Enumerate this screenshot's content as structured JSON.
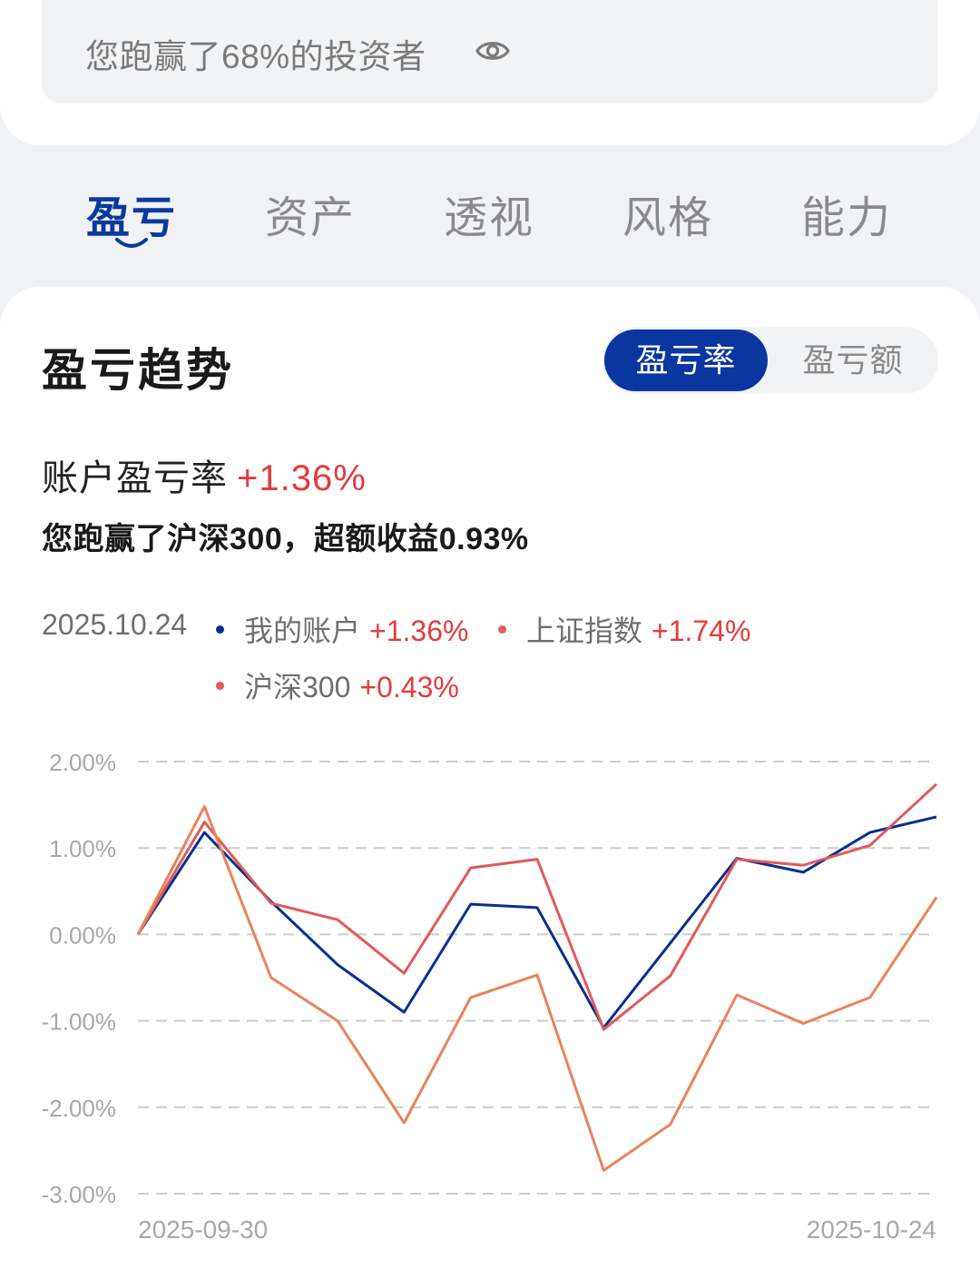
{
  "header": {
    "rank_text": "您跑赢了68%的投资者",
    "eye_icon": "eye-icon"
  },
  "tabs": [
    {
      "label": "盈亏",
      "active": true
    },
    {
      "label": "资产",
      "active": false
    },
    {
      "label": "透视",
      "active": false
    },
    {
      "label": "风格",
      "active": false
    },
    {
      "label": "能力",
      "active": false
    }
  ],
  "section": {
    "title": "盈亏趋势",
    "toggle": {
      "active": "盈亏率",
      "inactive": "盈亏额"
    },
    "rate_label": "账户盈亏率",
    "rate_value": "+1.36%",
    "sub_text": "您跑赢了沪深300，超额收益0.93%"
  },
  "legend": {
    "date": "2025.10.24",
    "items": [
      {
        "name": "我的账户",
        "value": "+1.36%",
        "color": "#0a2f8f"
      },
      {
        "name": "上证指数",
        "value": "+1.74%",
        "color": "#e05a5a"
      },
      {
        "name": "沪深300",
        "value": "+0.43%",
        "color": "#e8835a"
      }
    ]
  },
  "colors": {
    "accent": "#0a36a0",
    "positive": "#e63a3a",
    "grid": "#cccccc"
  },
  "chart_data": {
    "type": "line",
    "x_labels": [
      "2025-09-30",
      "2025-10-24"
    ],
    "ylim": [
      -3.0,
      2.0
    ],
    "y_ticks": [
      {
        "value": 2.0,
        "label": "2.00%"
      },
      {
        "value": 1.0,
        "label": "1.00%"
      },
      {
        "value": 0.0,
        "label": "0.00%"
      },
      {
        "value": -1.0,
        "label": "-1.00%"
      },
      {
        "value": -2.0,
        "label": "-2.00%"
      },
      {
        "value": -3.0,
        "label": "-3.00%"
      }
    ],
    "grid": true,
    "series": [
      {
        "name": "我的账户",
        "color": "#0a2f8f",
        "values": [
          0.0,
          1.18,
          0.38,
          -0.35,
          -0.9,
          0.35,
          0.31,
          -1.08,
          -0.1,
          0.88,
          0.72,
          1.18,
          1.36
        ]
      },
      {
        "name": "上证指数",
        "color": "#e05a5a",
        "values": [
          0.0,
          1.3,
          0.36,
          0.17,
          -0.45,
          0.77,
          0.87,
          -1.1,
          -0.48,
          0.87,
          0.8,
          1.03,
          1.74
        ]
      },
      {
        "name": "沪深300",
        "color": "#e8835a",
        "values": [
          0.0,
          1.48,
          -0.5,
          -1.0,
          -2.18,
          -0.73,
          -0.47,
          -2.73,
          -2.2,
          -0.7,
          -1.03,
          -0.73,
          0.43
        ]
      }
    ]
  }
}
